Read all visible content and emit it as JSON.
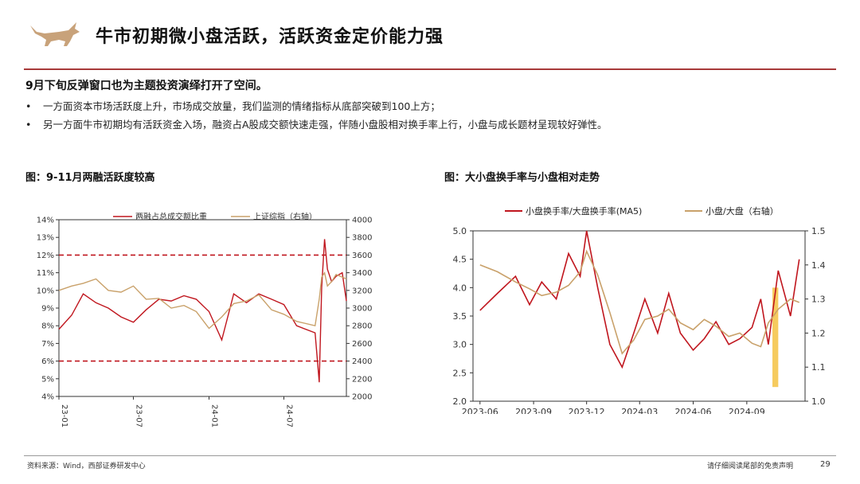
{
  "header": {
    "title": "牛市初期微小盘活跃，活跃资金定价能力强",
    "logo_icon": "bull-logo-icon"
  },
  "summary": {
    "headline": "9月下旬反弹窗口也为主题投资演绎打开了空间。",
    "bullets": [
      "一方面资本市场活跃度上升，市场成交放量，我们监测的情绪指标从底部突破到100上方；",
      "另一方面牛市初期均有活跃资金入场，融资占A股成交额快速走强，伴随小盘股相对换手率上行，小盘与成长题材呈现较好弹性。"
    ]
  },
  "figure1": {
    "title": "图：9-11月两融活跃度较高"
  },
  "figure2": {
    "title": "图：大小盘换手率与小盘相对走势"
  },
  "footer": {
    "source": "资料来源：Wind，西部证券研发中心",
    "disclaimer": "请仔细阅读尾部的免责声明",
    "page": "29"
  },
  "colors": {
    "accent": "#a73a3a",
    "red_series": "#c0161e",
    "tan_series": "#c9a16a",
    "highlight": "#f5c242"
  },
  "chart_data": [
    {
      "type": "line",
      "title": "图：9-11月两融活跃度较高",
      "x_ticks": [
        "23-01",
        "23-07",
        "24-01",
        "24-07"
      ],
      "ylim_left": [
        4,
        14
      ],
      "yticks_left": [
        "4%",
        "5%",
        "6%",
        "7%",
        "8%",
        "9%",
        "10%",
        "11%",
        "12%",
        "13%",
        "14%"
      ],
      "ylim_right": [
        2000,
        4000
      ],
      "yticks_right": [
        "2000",
        "2200",
        "2400",
        "2600",
        "2800",
        "3000",
        "3200",
        "3400",
        "3600",
        "3800",
        "4000"
      ],
      "reference_lines_left": [
        12,
        6
      ],
      "legend_position": "top",
      "series": [
        {
          "name": "两融占总成交额比重",
          "axis": "left",
          "color": "#c0161e",
          "x": [
            "2023-01",
            "2023-02",
            "2023-03",
            "2023-04",
            "2023-05",
            "2023-06",
            "2023-07",
            "2023-08",
            "2023-09",
            "2023-10",
            "2023-11",
            "2023-12",
            "2024-01",
            "2024-02",
            "2024-03",
            "2024-04",
            "2024-05",
            "2024-06",
            "2024-07",
            "2024-08",
            "2024-09-15",
            "2024-09-25",
            "2024-10-01",
            "2024-10-08",
            "2024-10-15",
            "2024-10-25",
            "2024-11-05",
            "2024-11-20",
            "2024-11-30"
          ],
          "y": [
            7.8,
            8.6,
            9.8,
            9.3,
            9.0,
            8.5,
            8.2,
            8.9,
            9.5,
            9.4,
            9.7,
            9.5,
            8.8,
            7.2,
            9.8,
            9.3,
            9.8,
            9.5,
            9.2,
            8.0,
            7.6,
            4.8,
            10.2,
            12.9,
            11.2,
            10.5,
            10.8,
            11.0,
            9.4
          ]
        },
        {
          "name": "上证综指（右轴）",
          "axis": "right",
          "color": "#c9a16a",
          "x": [
            "2023-01",
            "2023-02",
            "2023-03",
            "2023-04",
            "2023-05",
            "2023-06",
            "2023-07",
            "2023-08",
            "2023-09",
            "2023-10",
            "2023-11",
            "2023-12",
            "2024-01",
            "2024-02",
            "2024-03",
            "2024-04",
            "2024-05",
            "2024-06",
            "2024-07",
            "2024-08",
            "2024-09-15",
            "2024-09-25",
            "2024-10-01",
            "2024-10-08",
            "2024-10-15",
            "2024-10-25",
            "2024-11-05",
            "2024-11-20",
            "2024-11-30"
          ],
          "y": [
            3200,
            3250,
            3280,
            3330,
            3200,
            3180,
            3250,
            3100,
            3110,
            3000,
            3030,
            2960,
            2770,
            2900,
            3050,
            3080,
            3150,
            2980,
            2930,
            2850,
            2800,
            3100,
            3350,
            3400,
            3250,
            3300,
            3380,
            3350,
            3330
          ]
        }
      ]
    },
    {
      "type": "line",
      "title": "图：大小盘换手率与小盘相对走势",
      "x_ticks": [
        "2023-06",
        "2023-09",
        "2023-12",
        "2024-03",
        "2024-06",
        "2024-09"
      ],
      "ylim_left": [
        2.0,
        5.0
      ],
      "yticks_left": [
        "2.0",
        "2.5",
        "3.0",
        "3.5",
        "4.0",
        "4.5",
        "5.0"
      ],
      "ylim_right": [
        1.0,
        1.5
      ],
      "yticks_right": [
        "1.0",
        "1.1",
        "1.2",
        "1.3",
        "1.4",
        "1.5"
      ],
      "legend_position": "top",
      "highlight_period": [
        "2024-10-15",
        "2024-10-25"
      ],
      "series": [
        {
          "name": "小盘换手率/大盘换手率(MA5)",
          "axis": "left",
          "color": "#c0161e",
          "x": [
            "2023-06-01",
            "2023-07-01",
            "2023-08-01",
            "2023-08-25",
            "2023-09-15",
            "2023-10-10",
            "2023-10-31",
            "2023-11-20",
            "2023-12-01",
            "2023-12-20",
            "2024-01-10",
            "2024-01-31",
            "2024-02-20",
            "2024-03-10",
            "2024-04-01",
            "2024-04-20",
            "2024-05-10",
            "2024-06-01",
            "2024-06-20",
            "2024-07-10",
            "2024-08-01",
            "2024-08-20",
            "2024-09-10",
            "2024-09-25",
            "2024-10-08",
            "2024-10-25",
            "2024-11-15",
            "2024-11-30"
          ],
          "y": [
            3.6,
            3.9,
            4.2,
            3.7,
            4.1,
            3.8,
            4.6,
            4.2,
            5.0,
            4.0,
            3.0,
            2.6,
            3.2,
            3.8,
            3.2,
            3.9,
            3.2,
            2.9,
            3.1,
            3.4,
            3.0,
            3.1,
            3.3,
            3.8,
            3.0,
            4.3,
            3.5,
            4.5
          ]
        },
        {
          "name": "小盘/大盘（右轴）",
          "axis": "right",
          "color": "#c9a16a",
          "x": [
            "2023-06-01",
            "2023-07-01",
            "2023-08-01",
            "2023-08-25",
            "2023-09-15",
            "2023-10-10",
            "2023-10-31",
            "2023-11-20",
            "2023-12-01",
            "2023-12-20",
            "2024-01-10",
            "2024-01-31",
            "2024-02-20",
            "2024-03-10",
            "2024-04-01",
            "2024-04-20",
            "2024-05-10",
            "2024-06-01",
            "2024-06-20",
            "2024-07-10",
            "2024-08-01",
            "2024-08-20",
            "2024-09-10",
            "2024-09-25",
            "2024-10-08",
            "2024-10-25",
            "2024-11-15",
            "2024-11-30"
          ],
          "y": [
            1.4,
            1.38,
            1.35,
            1.33,
            1.31,
            1.32,
            1.34,
            1.38,
            1.44,
            1.37,
            1.26,
            1.14,
            1.18,
            1.24,
            1.25,
            1.27,
            1.23,
            1.21,
            1.24,
            1.22,
            1.19,
            1.2,
            1.17,
            1.16,
            1.23,
            1.27,
            1.3,
            1.29
          ]
        }
      ]
    }
  ]
}
